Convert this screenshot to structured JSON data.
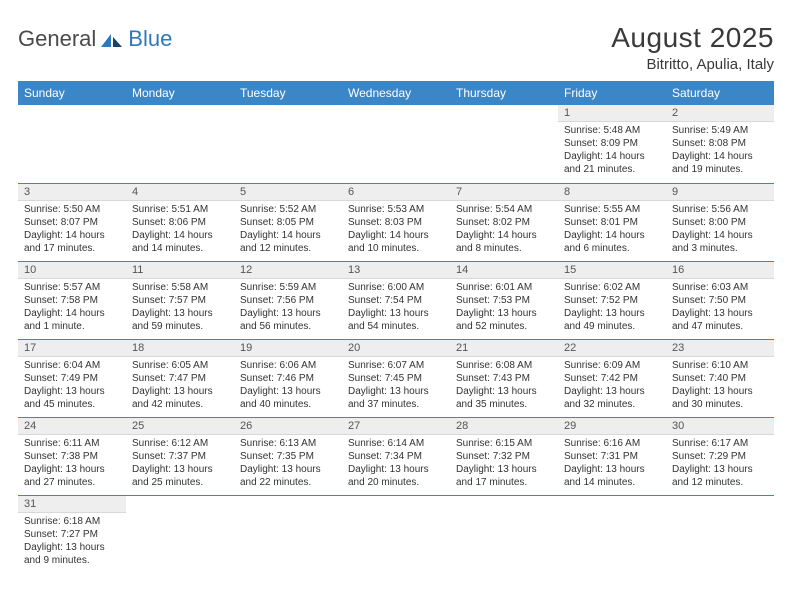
{
  "brand": {
    "part1": "General",
    "part2": "Blue"
  },
  "title": "August 2025",
  "location": "Bitritto, Apulia, Italy",
  "colors": {
    "header_bg": "#3b86c6",
    "header_fg": "#ffffff",
    "daynum_bg": "#eeeeee",
    "row_border": "#3b86c6",
    "text": "#333333"
  },
  "weekdays": [
    "Sunday",
    "Monday",
    "Tuesday",
    "Wednesday",
    "Thursday",
    "Friday",
    "Saturday"
  ],
  "weeks": [
    [
      {
        "n": "",
        "sr": "",
        "ss": "",
        "dl": ""
      },
      {
        "n": "",
        "sr": "",
        "ss": "",
        "dl": ""
      },
      {
        "n": "",
        "sr": "",
        "ss": "",
        "dl": ""
      },
      {
        "n": "",
        "sr": "",
        "ss": "",
        "dl": ""
      },
      {
        "n": "",
        "sr": "",
        "ss": "",
        "dl": ""
      },
      {
        "n": "1",
        "sr": "Sunrise: 5:48 AM",
        "ss": "Sunset: 8:09 PM",
        "dl": "Daylight: 14 hours and 21 minutes."
      },
      {
        "n": "2",
        "sr": "Sunrise: 5:49 AM",
        "ss": "Sunset: 8:08 PM",
        "dl": "Daylight: 14 hours and 19 minutes."
      }
    ],
    [
      {
        "n": "3",
        "sr": "Sunrise: 5:50 AM",
        "ss": "Sunset: 8:07 PM",
        "dl": "Daylight: 14 hours and 17 minutes."
      },
      {
        "n": "4",
        "sr": "Sunrise: 5:51 AM",
        "ss": "Sunset: 8:06 PM",
        "dl": "Daylight: 14 hours and 14 minutes."
      },
      {
        "n": "5",
        "sr": "Sunrise: 5:52 AM",
        "ss": "Sunset: 8:05 PM",
        "dl": "Daylight: 14 hours and 12 minutes."
      },
      {
        "n": "6",
        "sr": "Sunrise: 5:53 AM",
        "ss": "Sunset: 8:03 PM",
        "dl": "Daylight: 14 hours and 10 minutes."
      },
      {
        "n": "7",
        "sr": "Sunrise: 5:54 AM",
        "ss": "Sunset: 8:02 PM",
        "dl": "Daylight: 14 hours and 8 minutes."
      },
      {
        "n": "8",
        "sr": "Sunrise: 5:55 AM",
        "ss": "Sunset: 8:01 PM",
        "dl": "Daylight: 14 hours and 6 minutes."
      },
      {
        "n": "9",
        "sr": "Sunrise: 5:56 AM",
        "ss": "Sunset: 8:00 PM",
        "dl": "Daylight: 14 hours and 3 minutes."
      }
    ],
    [
      {
        "n": "10",
        "sr": "Sunrise: 5:57 AM",
        "ss": "Sunset: 7:58 PM",
        "dl": "Daylight: 14 hours and 1 minute."
      },
      {
        "n": "11",
        "sr": "Sunrise: 5:58 AM",
        "ss": "Sunset: 7:57 PM",
        "dl": "Daylight: 13 hours and 59 minutes."
      },
      {
        "n": "12",
        "sr": "Sunrise: 5:59 AM",
        "ss": "Sunset: 7:56 PM",
        "dl": "Daylight: 13 hours and 56 minutes."
      },
      {
        "n": "13",
        "sr": "Sunrise: 6:00 AM",
        "ss": "Sunset: 7:54 PM",
        "dl": "Daylight: 13 hours and 54 minutes."
      },
      {
        "n": "14",
        "sr": "Sunrise: 6:01 AM",
        "ss": "Sunset: 7:53 PM",
        "dl": "Daylight: 13 hours and 52 minutes."
      },
      {
        "n": "15",
        "sr": "Sunrise: 6:02 AM",
        "ss": "Sunset: 7:52 PM",
        "dl": "Daylight: 13 hours and 49 minutes."
      },
      {
        "n": "16",
        "sr": "Sunrise: 6:03 AM",
        "ss": "Sunset: 7:50 PM",
        "dl": "Daylight: 13 hours and 47 minutes."
      }
    ],
    [
      {
        "n": "17",
        "sr": "Sunrise: 6:04 AM",
        "ss": "Sunset: 7:49 PM",
        "dl": "Daylight: 13 hours and 45 minutes."
      },
      {
        "n": "18",
        "sr": "Sunrise: 6:05 AM",
        "ss": "Sunset: 7:47 PM",
        "dl": "Daylight: 13 hours and 42 minutes."
      },
      {
        "n": "19",
        "sr": "Sunrise: 6:06 AM",
        "ss": "Sunset: 7:46 PM",
        "dl": "Daylight: 13 hours and 40 minutes."
      },
      {
        "n": "20",
        "sr": "Sunrise: 6:07 AM",
        "ss": "Sunset: 7:45 PM",
        "dl": "Daylight: 13 hours and 37 minutes."
      },
      {
        "n": "21",
        "sr": "Sunrise: 6:08 AM",
        "ss": "Sunset: 7:43 PM",
        "dl": "Daylight: 13 hours and 35 minutes."
      },
      {
        "n": "22",
        "sr": "Sunrise: 6:09 AM",
        "ss": "Sunset: 7:42 PM",
        "dl": "Daylight: 13 hours and 32 minutes."
      },
      {
        "n": "23",
        "sr": "Sunrise: 6:10 AM",
        "ss": "Sunset: 7:40 PM",
        "dl": "Daylight: 13 hours and 30 minutes."
      }
    ],
    [
      {
        "n": "24",
        "sr": "Sunrise: 6:11 AM",
        "ss": "Sunset: 7:38 PM",
        "dl": "Daylight: 13 hours and 27 minutes."
      },
      {
        "n": "25",
        "sr": "Sunrise: 6:12 AM",
        "ss": "Sunset: 7:37 PM",
        "dl": "Daylight: 13 hours and 25 minutes."
      },
      {
        "n": "26",
        "sr": "Sunrise: 6:13 AM",
        "ss": "Sunset: 7:35 PM",
        "dl": "Daylight: 13 hours and 22 minutes."
      },
      {
        "n": "27",
        "sr": "Sunrise: 6:14 AM",
        "ss": "Sunset: 7:34 PM",
        "dl": "Daylight: 13 hours and 20 minutes."
      },
      {
        "n": "28",
        "sr": "Sunrise: 6:15 AM",
        "ss": "Sunset: 7:32 PM",
        "dl": "Daylight: 13 hours and 17 minutes."
      },
      {
        "n": "29",
        "sr": "Sunrise: 6:16 AM",
        "ss": "Sunset: 7:31 PM",
        "dl": "Daylight: 13 hours and 14 minutes."
      },
      {
        "n": "30",
        "sr": "Sunrise: 6:17 AM",
        "ss": "Sunset: 7:29 PM",
        "dl": "Daylight: 13 hours and 12 minutes."
      }
    ],
    [
      {
        "n": "31",
        "sr": "Sunrise: 6:18 AM",
        "ss": "Sunset: 7:27 PM",
        "dl": "Daylight: 13 hours and 9 minutes."
      },
      {
        "n": "",
        "sr": "",
        "ss": "",
        "dl": ""
      },
      {
        "n": "",
        "sr": "",
        "ss": "",
        "dl": ""
      },
      {
        "n": "",
        "sr": "",
        "ss": "",
        "dl": ""
      },
      {
        "n": "",
        "sr": "",
        "ss": "",
        "dl": ""
      },
      {
        "n": "",
        "sr": "",
        "ss": "",
        "dl": ""
      },
      {
        "n": "",
        "sr": "",
        "ss": "",
        "dl": ""
      }
    ]
  ]
}
